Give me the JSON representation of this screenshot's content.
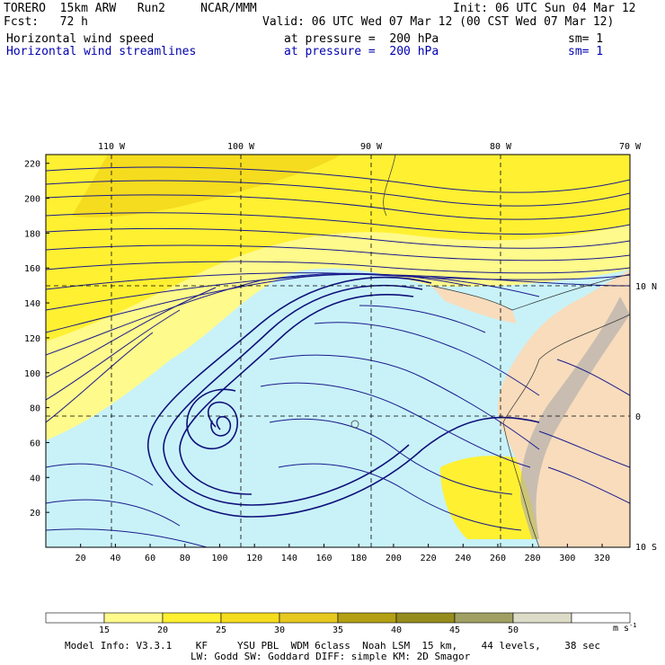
{
  "header": {
    "line1_left": "TORERO  15km ARW   Run2     NCAR/MMM",
    "line1_right": "Init: 06 UTC Sun 04 Mar 12",
    "line2_left": "Fcst:   72 h",
    "line2_right": "Valid: 06 UTC Wed 07 Mar 12 (00 CST Wed 07 Mar 12)",
    "field1_name": "Horizontal wind speed",
    "field1_level": "at pressure =  200 hPa",
    "field1_sm": "sm= 1",
    "field2_name": "Horizontal wind streamlines",
    "field2_level": "at pressure =  200 hPa",
    "field2_sm": "sm= 1"
  },
  "map": {
    "top_lon_labels": [
      "110 W",
      "100 W",
      "90 W",
      "80 W",
      "70 W"
    ],
    "left_y_ticks": [
      "220",
      "200",
      "180",
      "160",
      "140",
      "120",
      "100",
      "80",
      "60",
      "40",
      "20"
    ],
    "bottom_x_ticks": [
      "20",
      "40",
      "60",
      "80",
      "100",
      "120",
      "140",
      "160",
      "180",
      "200",
      "220",
      "240",
      "260",
      "280",
      "300",
      "320"
    ],
    "right_lat_labels": [
      "10 N",
      "0",
      "10 S"
    ],
    "colors": {
      "calm": "#c8f2f8",
      "s15": "#fffa8c",
      "s20": "#fff032",
      "s25": "#f5dc1e",
      "land": "#f8dcbc",
      "stream": "#1a1a8c"
    }
  },
  "colorbar": {
    "ticks": [
      "15",
      "20",
      "25",
      "30",
      "35",
      "40",
      "45",
      "50"
    ],
    "unit": "m s-1",
    "colors": [
      "#ffffff",
      "#fffa8c",
      "#fff032",
      "#f5dc1e",
      "#e6c81e",
      "#b4a014",
      "#968c1e",
      "#a0a064",
      "#dcdcc8",
      "#ffffff"
    ]
  },
  "footer": {
    "line1": "Model Info: V3.3.1    KF     YSU PBL  WDM 6class  Noah LSM  15 km,    44 levels,    38 sec",
    "line2": "LW: Godd SW: Goddard DIFF: simple KM: 2D Smagor"
  }
}
